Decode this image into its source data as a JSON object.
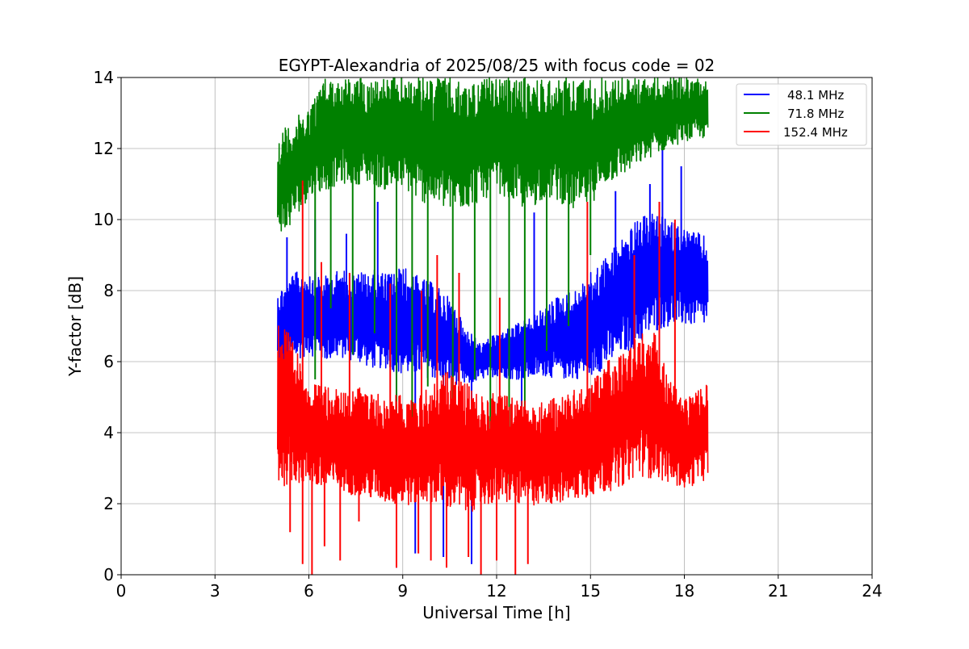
{
  "chart_data": {
    "type": "line",
    "title": "EGYPT-Alexandria of 2025/08/25 with focus code = 02",
    "xlabel": "Universal Time [h]",
    "ylabel": "Y-factor [dB]",
    "xlim": [
      0,
      24
    ],
    "ylim": [
      0,
      14
    ],
    "xticks": [
      0,
      3,
      6,
      9,
      12,
      15,
      18,
      21,
      24
    ],
    "yticks": [
      0,
      2,
      4,
      6,
      8,
      10,
      12,
      14
    ],
    "xtick_labels": [
      "0",
      "3",
      "6",
      "9",
      "12",
      "15",
      "18",
      "21",
      "24"
    ],
    "ytick_labels": [
      "0",
      "2",
      "4",
      "6",
      "8",
      "10",
      "12",
      "14"
    ],
    "grid": true,
    "legend_position": "top-right",
    "legend_labels": [
      "48.1 MHz",
      "71.8 MHz",
      "152.4 MHz"
    ],
    "series": [
      {
        "name": "48.1 MHz",
        "color": "#0000ff",
        "x": [
          5.0,
          5.5,
          6.0,
          6.5,
          7.0,
          7.5,
          8.0,
          8.5,
          9.0,
          9.5,
          10.0,
          10.5,
          11.0,
          11.5,
          12.0,
          12.5,
          13.0,
          13.5,
          14.0,
          14.5,
          15.0,
          15.5,
          16.0,
          16.5,
          17.0,
          17.5,
          18.0,
          18.75
        ],
        "low": [
          5.8,
          6.0,
          6.2,
          6.0,
          6.1,
          6.0,
          5.8,
          5.8,
          5.6,
          5.6,
          5.5,
          5.4,
          5.3,
          5.5,
          5.6,
          5.5,
          5.5,
          5.6,
          5.5,
          5.5,
          5.6,
          5.8,
          6.2,
          6.4,
          6.8,
          7.0,
          7.0,
          7.0
        ],
        "high": [
          8.0,
          8.5,
          8.6,
          8.4,
          8.6,
          8.5,
          8.6,
          8.5,
          8.7,
          8.4,
          8.2,
          7.8,
          7.0,
          6.5,
          6.8,
          7.0,
          7.2,
          7.5,
          7.9,
          8.0,
          8.5,
          9.0,
          9.5,
          10.0,
          10.2,
          10.0,
          9.8,
          9.5
        ],
        "spikes_up": [
          [
            5.3,
            9.5
          ],
          [
            6.2,
            10.0
          ],
          [
            7.2,
            9.6
          ],
          [
            8.2,
            10.5
          ],
          [
            13.2,
            10.2
          ],
          [
            15.8,
            10.8
          ],
          [
            16.9,
            11.0
          ],
          [
            17.3,
            12.2
          ],
          [
            17.9,
            11.5
          ]
        ],
        "spikes_down": [
          [
            8.8,
            0.2
          ],
          [
            9.4,
            0.6
          ],
          [
            10.3,
            0.5
          ],
          [
            11.2,
            0.3
          ],
          [
            12.8,
            2.8
          ]
        ]
      },
      {
        "name": "71.8 MHz",
        "color": "#008000",
        "x": [
          5.0,
          5.25,
          5.5,
          6.0,
          6.5,
          7.0,
          7.5,
          8.0,
          8.5,
          9.0,
          9.5,
          10.0,
          10.5,
          11.0,
          11.5,
          12.0,
          12.5,
          13.0,
          13.5,
          14.0,
          14.5,
          15.0,
          15.5,
          16.0,
          16.5,
          17.0,
          17.5,
          18.0,
          18.75
        ],
        "low": [
          9.8,
          9.5,
          10.0,
          10.6,
          10.8,
          11.0,
          11.0,
          11.0,
          10.8,
          10.9,
          10.5,
          10.4,
          10.2,
          10.3,
          10.5,
          10.8,
          10.5,
          10.2,
          10.6,
          10.5,
          10.2,
          10.4,
          11.0,
          11.2,
          11.5,
          11.8,
          12.0,
          12.2,
          12.3
        ],
        "high": [
          12.3,
          12.6,
          12.8,
          13.2,
          14.0,
          14.0,
          14.0,
          14.0,
          14.0,
          14.0,
          14.0,
          14.0,
          14.0,
          13.8,
          14.0,
          14.0,
          14.0,
          14.0,
          14.0,
          14.0,
          14.0,
          14.0,
          14.0,
          14.0,
          14.0,
          14.0,
          14.0,
          14.0,
          14.0
        ],
        "spikes_up": [],
        "spikes_down": [
          [
            6.2,
            5.5
          ],
          [
            6.7,
            7.5
          ],
          [
            7.4,
            6.2
          ],
          [
            8.1,
            6.8
          ],
          [
            8.8,
            4.5
          ],
          [
            9.3,
            3.2
          ],
          [
            9.8,
            5.3
          ],
          [
            10.6,
            4.5
          ],
          [
            11.3,
            5.5
          ],
          [
            11.8,
            3.5
          ],
          [
            12.4,
            2.5
          ],
          [
            12.9,
            4.0
          ],
          [
            13.6,
            6.3
          ],
          [
            14.3,
            7.0
          ],
          [
            15.0,
            9.0
          ]
        ]
      },
      {
        "name": "152.4 MHz",
        "color": "#ff0000",
        "x": [
          5.0,
          5.5,
          6.0,
          6.5,
          7.0,
          7.5,
          8.0,
          8.5,
          9.0,
          9.5,
          10.0,
          10.5,
          11.0,
          11.5,
          12.0,
          12.5,
          13.0,
          13.5,
          14.0,
          14.5,
          15.0,
          15.5,
          16.0,
          16.5,
          17.0,
          17.5,
          18.0,
          18.75
        ],
        "low": [
          2.4,
          2.6,
          2.5,
          2.3,
          2.4,
          2.2,
          2.1,
          2.0,
          1.9,
          2.0,
          2.0,
          1.8,
          1.7,
          1.9,
          2.0,
          2.0,
          1.9,
          2.0,
          2.0,
          2.1,
          2.2,
          2.3,
          2.5,
          2.8,
          2.7,
          2.6,
          2.4,
          2.7
        ],
        "high": [
          7.5,
          6.5,
          5.5,
          5.3,
          5.2,
          5.3,
          5.2,
          5.0,
          5.1,
          5.0,
          5.5,
          5.8,
          5.5,
          5.0,
          5.2,
          5.0,
          4.9,
          5.0,
          5.0,
          5.2,
          5.5,
          6.0,
          6.2,
          6.8,
          7.0,
          5.5,
          5.0,
          5.5
        ],
        "spikes_up": [
          [
            5.8,
            11.1
          ],
          [
            6.4,
            8.8
          ],
          [
            7.3,
            8.5
          ],
          [
            8.6,
            8.2
          ],
          [
            9.6,
            8.0
          ],
          [
            10.1,
            9.0
          ],
          [
            10.8,
            8.5
          ],
          [
            12.1,
            7.8
          ],
          [
            14.9,
            10.5
          ],
          [
            16.4,
            9.0
          ],
          [
            17.2,
            10.5
          ],
          [
            17.7,
            10.0
          ]
        ],
        "spikes_down": [
          [
            5.4,
            1.2
          ],
          [
            5.8,
            0.3
          ],
          [
            6.1,
            0.0
          ],
          [
            6.5,
            0.8
          ],
          [
            7.0,
            0.4
          ],
          [
            7.6,
            1.5
          ],
          [
            8.8,
            0.2
          ],
          [
            9.5,
            0.6
          ],
          [
            9.9,
            0.4
          ],
          [
            10.4,
            0.2
          ],
          [
            11.1,
            0.5
          ],
          [
            11.5,
            0.0
          ],
          [
            12.0,
            0.4
          ],
          [
            12.6,
            0.0
          ],
          [
            13.0,
            0.3
          ]
        ]
      }
    ]
  }
}
